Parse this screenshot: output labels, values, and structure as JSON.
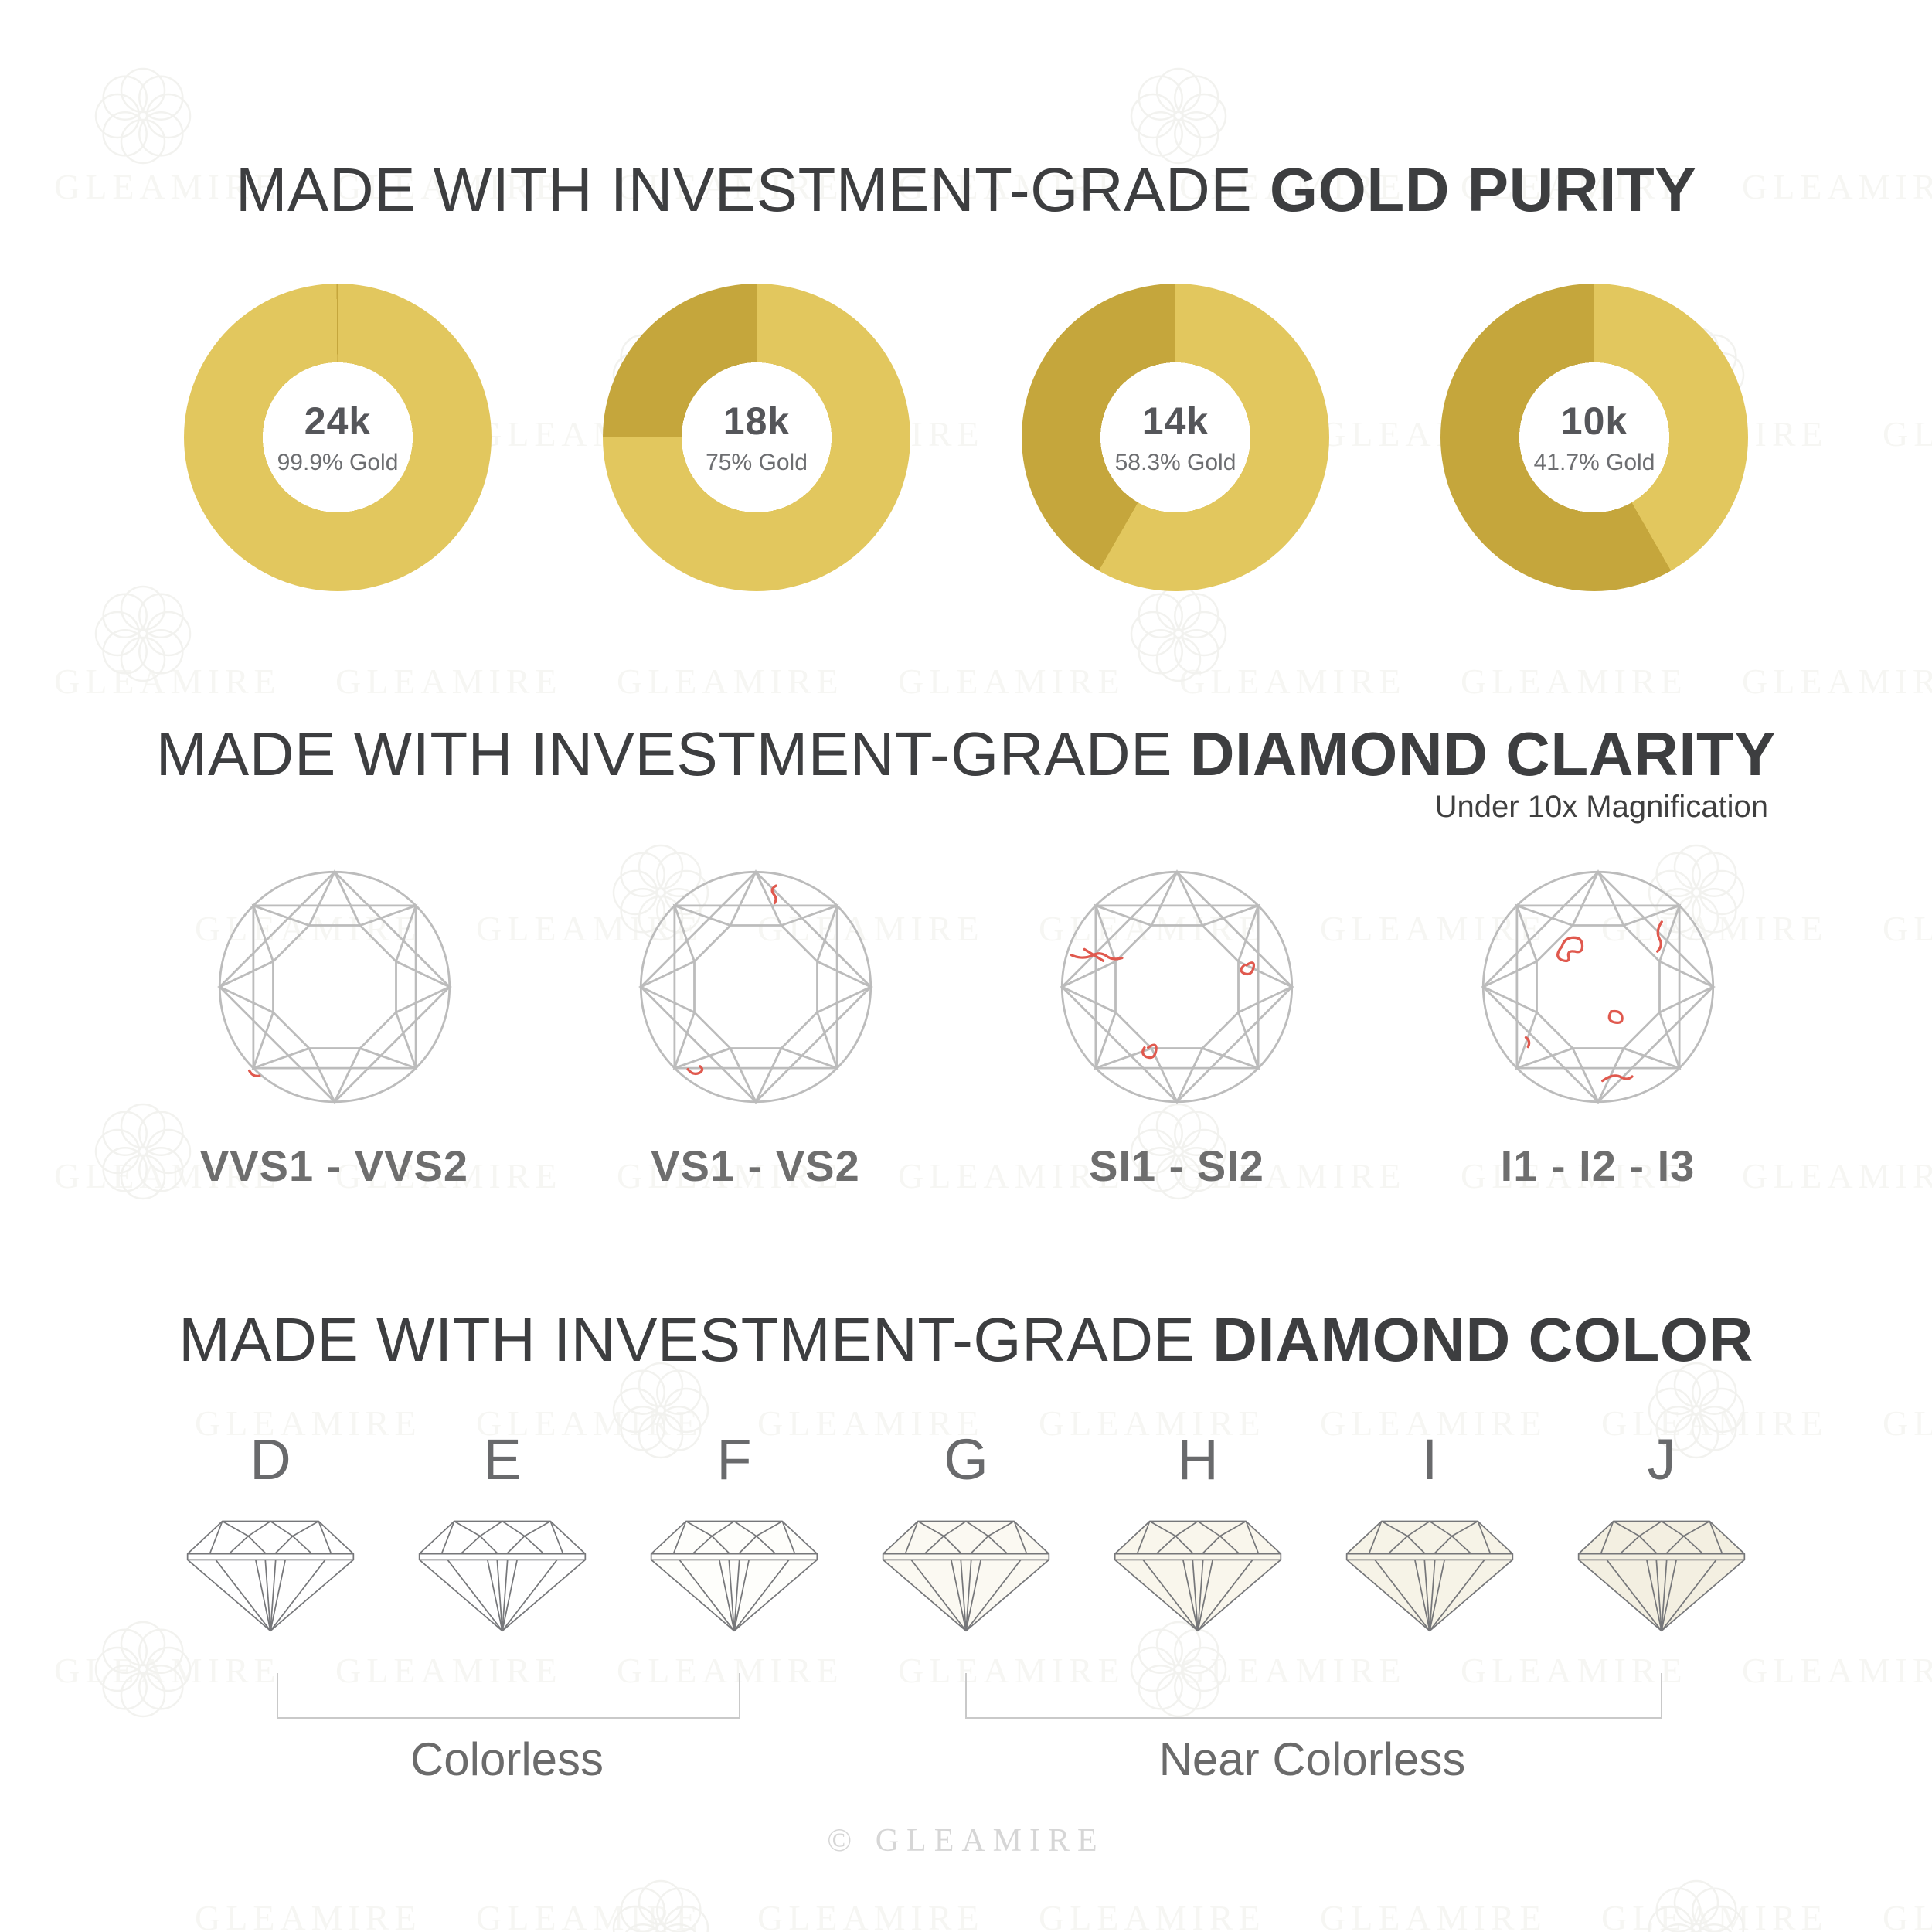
{
  "brand": {
    "name": "GLEAMIRE",
    "copyright": "© GLEAMIRE",
    "watermark_text": "GLEAMIRE"
  },
  "colors": {
    "gold_bright": "#e2c75e",
    "gold_dark": "#c5a63c",
    "title": "#3d3e40",
    "line_gray": "#bcbcbc",
    "inclusion_red": "#e0594e",
    "profile_line": "#76777a",
    "bracket_gray": "#c9c9c9",
    "watermark": "#f6f6f3"
  },
  "sections": {
    "gold_purity": {
      "title_prefix": "MADE WITH INVESTMENT-GRADE",
      "title_bold": "GOLD PURITY",
      "donuts": [
        {
          "karat": "24k",
          "purity": "99.9% Gold",
          "gold_pct": 99.9
        },
        {
          "karat": "18k",
          "purity": "75% Gold",
          "gold_pct": 75
        },
        {
          "karat": "14k",
          "purity": "58.3% Gold",
          "gold_pct": 58.3
        },
        {
          "karat": "10k",
          "purity": "41.7% Gold",
          "gold_pct": 41.7
        }
      ]
    },
    "diamond_clarity": {
      "title_prefix": "MADE WITH INVESTMENT-GRADE",
      "title_bold": "DIAMOND CLARITY",
      "subtitle": "Under 10x Magnification",
      "grades": [
        {
          "label": "VVS1 - VVS2",
          "inclusions": 1
        },
        {
          "label": "VS1 - VS2",
          "inclusions": 2
        },
        {
          "label": "SI1 - SI2",
          "inclusions": 3
        },
        {
          "label": "I1 - I2 - I3",
          "inclusions": 5
        }
      ]
    },
    "diamond_color": {
      "title_prefix": "MADE WITH INVESTMENT-GRADE",
      "title_bold": "DIAMOND COLOR",
      "grades": [
        "D",
        "E",
        "F",
        "G",
        "H",
        "I",
        "J"
      ],
      "tints": [
        "#ffffff",
        "#ffffff",
        "#fefefb",
        "#fbf9f2",
        "#f9f6ec",
        "#f6f3e7",
        "#f3efe1"
      ],
      "groups": [
        {
          "label": "Colorless",
          "range": "D-F"
        },
        {
          "label": "Near Colorless",
          "range": "G-J"
        }
      ]
    }
  },
  "chart_data": {
    "type": "pie",
    "title": "Gold purity by karat (donut charts)",
    "charts": [
      {
        "label": "24k",
        "slices": {
          "gold": 99.9,
          "alloy": 0.1
        }
      },
      {
        "label": "18k",
        "slices": {
          "gold": 75,
          "alloy": 25
        }
      },
      {
        "label": "14k",
        "slices": {
          "gold": 58.3,
          "alloy": 41.7
        }
      },
      {
        "label": "10k",
        "slices": {
          "gold": 41.7,
          "alloy": 58.3
        }
      }
    ],
    "slice_colors": {
      "gold": "#e2c75e",
      "alloy": "#c5a63c"
    }
  }
}
